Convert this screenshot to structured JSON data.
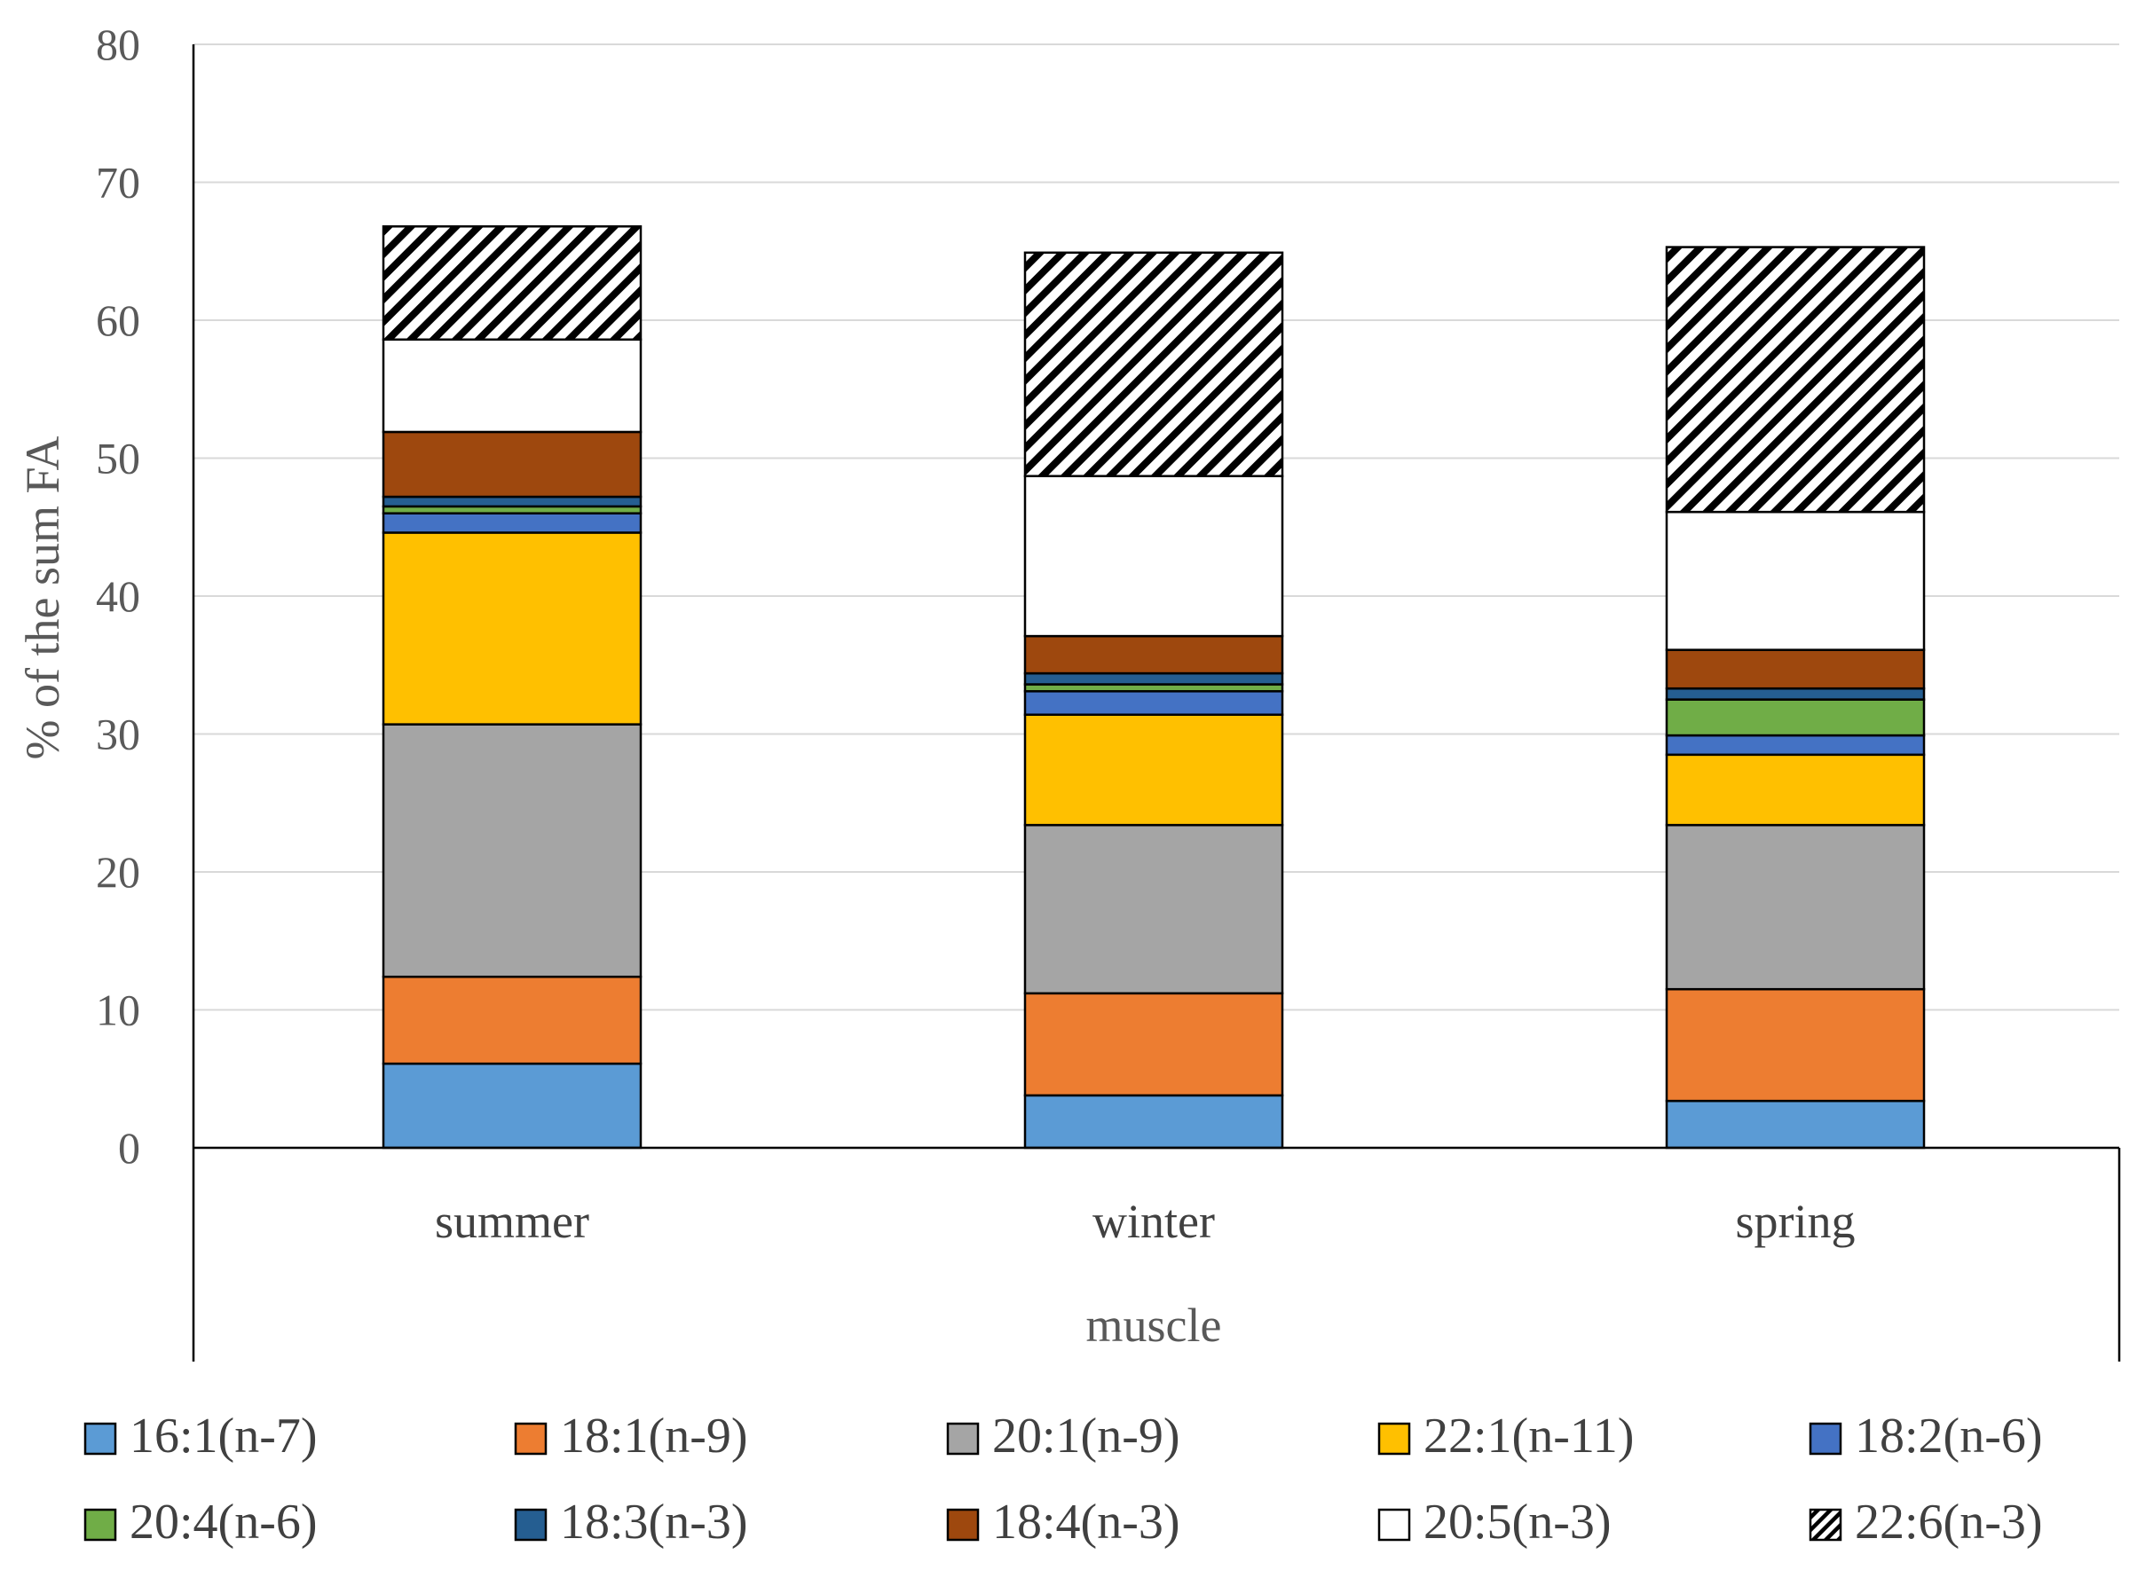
{
  "chart_data": {
    "type": "bar",
    "stacked": true,
    "ylabel": "% of the sum FA",
    "xlabel": "muscle",
    "ylim": [
      0,
      80
    ],
    "yticks": [
      0,
      10,
      20,
      30,
      40,
      50,
      60,
      70,
      80
    ],
    "grid": true,
    "legend_position": "bottom",
    "categories": [
      "summer",
      "winter",
      "spring"
    ],
    "series": [
      {
        "name": "16:1(n-7)",
        "color": "#5B9BD5",
        "pattern": "solid",
        "values": [
          6.1,
          3.8,
          3.4
        ]
      },
      {
        "name": "18:1(n-9)",
        "color": "#ED7D31",
        "pattern": "solid",
        "values": [
          6.3,
          7.4,
          8.1
        ]
      },
      {
        "name": "20:1(n-9)",
        "color": "#A5A5A5",
        "pattern": "solid",
        "values": [
          18.3,
          12.2,
          11.9
        ]
      },
      {
        "name": "22:1(n-11)",
        "color": "#FFC000",
        "pattern": "solid",
        "values": [
          13.9,
          8.0,
          5.1
        ]
      },
      {
        "name": "18:2(n-6)",
        "color": "#4472C4",
        "pattern": "solid",
        "values": [
          1.4,
          1.7,
          1.4
        ]
      },
      {
        "name": "20:4(n-6)",
        "color": "#70AD47",
        "pattern": "solid",
        "values": [
          0.5,
          0.5,
          2.6
        ]
      },
      {
        "name": "18:3(n-3)",
        "color": "#255E91",
        "pattern": "solid",
        "values": [
          0.7,
          0.8,
          0.8
        ]
      },
      {
        "name": "18:4(n-3)",
        "color": "#9E480E",
        "pattern": "solid",
        "values": [
          4.7,
          2.7,
          2.8
        ]
      },
      {
        "name": "20:5(n-3)",
        "color": "#FFFFFF",
        "pattern": "solid",
        "values": [
          6.7,
          11.6,
          10.0
        ]
      },
      {
        "name": "22:6(n-3)",
        "color": "#FFFFFF",
        "pattern": "hatch",
        "values": [
          8.2,
          16.2,
          19.2
        ]
      }
    ]
  }
}
